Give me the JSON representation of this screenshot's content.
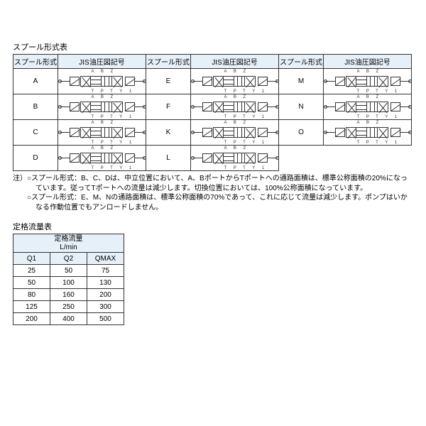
{
  "spool": {
    "title": "スプール形式表",
    "headers": {
      "type": "スプール形式",
      "symbol": "JIS油圧図記号"
    },
    "labels_top": "A B Z",
    "labels_bot": "T P T Y 1",
    "cols": [
      [
        "A",
        "B",
        "C",
        "D"
      ],
      [
        "E",
        "F",
        "K",
        "L"
      ],
      [
        "M",
        "N",
        "O"
      ]
    ],
    "table_border_color": "#333333",
    "header_bg": "#e6f0f8",
    "symbol_stroke": "#333333"
  },
  "notes": {
    "prefix": "注）",
    "bullet": "○",
    "lines": [
      "スプール形式：B、C、Dは、中立位置において、A、BポートからTポートへの通路面積は、標準公称面積の20%になっています。従ってTポートへの流量は減少します。切換位置においては、100%公称面積になっています。",
      "スプール形式：E、M、Nの通路面積は、標準公称面積の70%であって、これに応じて流量は減少します。ポンプはいかなる作動位置でもアンロードしません。"
    ]
  },
  "flow": {
    "title": "定格流量表",
    "rate_header": "定格流量\nL/min",
    "cols": [
      "Q1",
      "Q2",
      "QMAX"
    ],
    "rows": [
      [
        25,
        50,
        75
      ],
      [
        50,
        100,
        130
      ],
      [
        80,
        160,
        200
      ],
      [
        125,
        250,
        300
      ],
      [
        200,
        400,
        500
      ]
    ],
    "header_bg": "#e6f0f8"
  },
  "page": {
    "background": "#ffffff",
    "text_color": "#000000",
    "font_size_pt": 10
  }
}
